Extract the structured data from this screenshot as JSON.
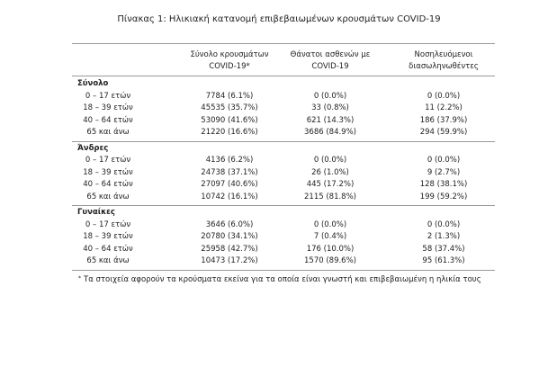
{
  "title": "Πίνακας 1: Ηλικιακή κατανομή επιβεβαιωμένων κρουσμάτων COVID-19",
  "table": {
    "headers": [
      [
        "Σύνολο κρουσμάτων",
        "COVID-19*"
      ],
      [
        "Θάνατοι ασθενών με",
        "COVID-19"
      ],
      [
        "Νοσηλευόμενοι",
        "διασωληνωθέντες"
      ]
    ],
    "groups": [
      {
        "name": "Σύνολο",
        "rows": [
          [
            "0 – 17 ετών",
            "7784 (6.1%)",
            "0 (0.0%)",
            "0 (0.0%)"
          ],
          [
            "18 – 39 ετών",
            "45535 (35.7%)",
            "33 (0.8%)",
            "11 (2.2%)"
          ],
          [
            "40 – 64 ετών",
            "53090 (41.6%)",
            "621 (14.3%)",
            "186 (37.9%)"
          ],
          [
            "65 και άνω",
            "21220 (16.6%)",
            "3686 (84.9%)",
            "294 (59.9%)"
          ]
        ]
      },
      {
        "name": "Άνδρες",
        "rows": [
          [
            "0 – 17 ετών",
            "4136 (6.2%)",
            "0 (0.0%)",
            "0 (0.0%)"
          ],
          [
            "18 – 39 ετών",
            "24738 (37.1%)",
            "26 (1.0%)",
            "9 (2.7%)"
          ],
          [
            "40 – 64 ετών",
            "27097 (40.6%)",
            "445 (17.2%)",
            "128 (38.1%)"
          ],
          [
            "65 και άνω",
            "10742 (16.1%)",
            "2115 (81.8%)",
            "199 (59.2%)"
          ]
        ]
      },
      {
        "name": "Γυναίκες",
        "rows": [
          [
            "0 – 17 ετών",
            "3646 (6.0%)",
            "0 (0.0%)",
            "0 (0.0%)"
          ],
          [
            "18 – 39 ετών",
            "20780 (34.1%)",
            "7 (0.4%)",
            "2 (1.3%)"
          ],
          [
            "40 – 64 ετών",
            "25958 (42.7%)",
            "176 (10.0%)",
            "58 (37.4%)"
          ],
          [
            "65 και άνω",
            "10473 (17.2%)",
            "1570 (89.6%)",
            "95 (61.3%)"
          ]
        ]
      }
    ]
  },
  "footnote": {
    "mark": "*",
    "text": "Τα στοιχεία αφορούν τα κρούσματα εκείνα για τα οποία είναι γνωστή και επιβεβαιωμένη η ηλικία τους"
  }
}
